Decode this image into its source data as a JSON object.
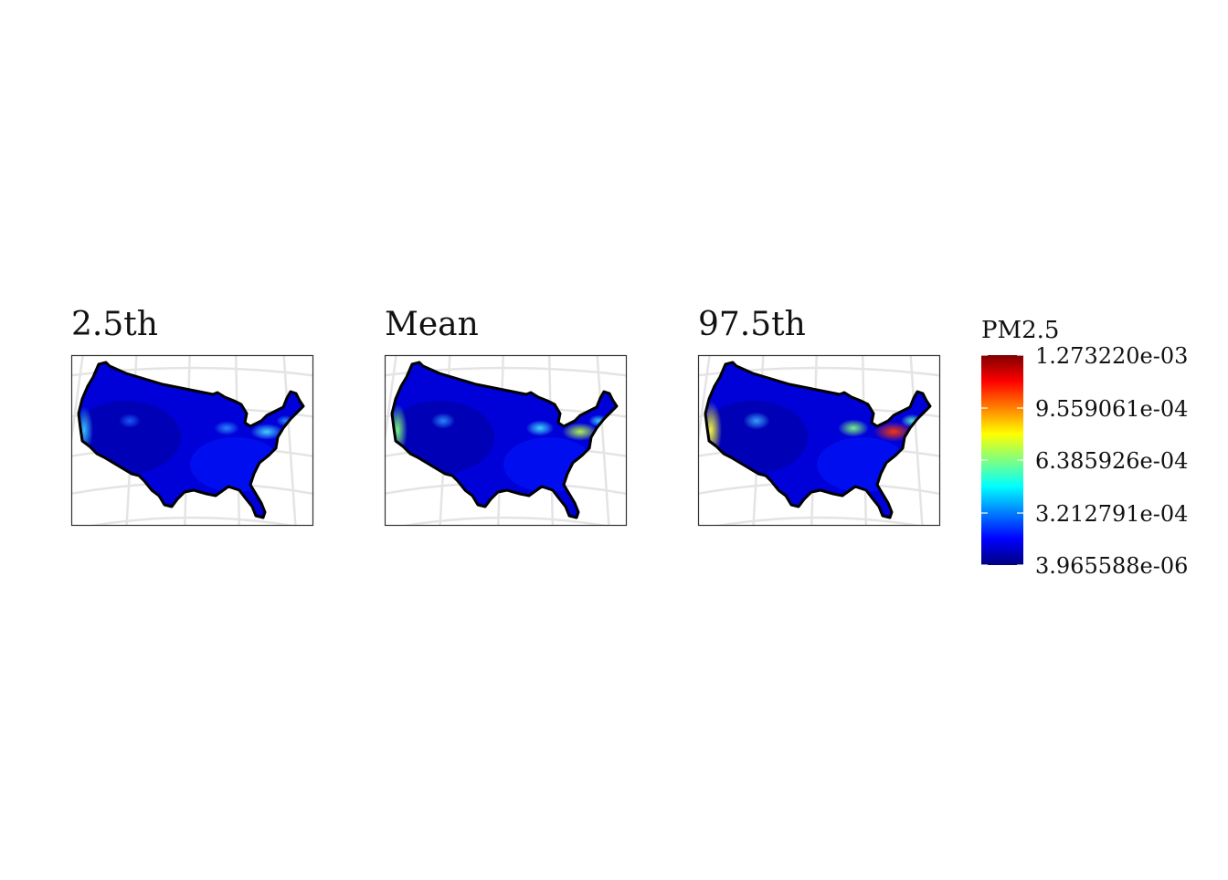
{
  "panels": [
    {
      "title": "2.5th",
      "intensity": 0.55
    },
    {
      "title": "Mean",
      "intensity": 0.85
    },
    {
      "title": "97.5th",
      "intensity": 1.18
    }
  ],
  "legend": {
    "title": "PM2.5",
    "colormap": [
      "#00007f",
      "#0000ff",
      "#007fff",
      "#00ffff",
      "#7fff7f",
      "#ffff00",
      "#ff7f00",
      "#ff0000",
      "#7f0000"
    ],
    "labels": [
      "1.273220e-03",
      "9.559061e-04",
      "6.385926e-04",
      "3.212791e-04",
      "3.965588e-06"
    ]
  },
  "colors": {
    "background": "#ffffff",
    "graticule": "#e4e4e4",
    "frame": "#333333",
    "outline": "#000000"
  }
}
